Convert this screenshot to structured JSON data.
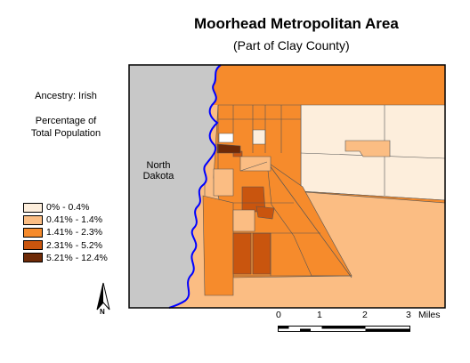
{
  "title": "Moorhead Metropolitan Area",
  "subtitle": "(Part of Clay County)",
  "topic": "Ancestry: Irish",
  "measure_line1": "Percentage of",
  "measure_line2": "Total Population",
  "state_label_line1": "North",
  "state_label_line2": "Dakota",
  "legend": [
    {
      "label": "0% - 0.4%",
      "color": "#fdeedc"
    },
    {
      "label": "0.41% - 1.4%",
      "color": "#fbbd83"
    },
    {
      "label": "1.41% - 2.3%",
      "color": "#f68b2c"
    },
    {
      "label": "2.31% - 5.2%",
      "color": "#c9550e"
    },
    {
      "label": "5.21% - 12.4%",
      "color": "#6e2a07"
    }
  ],
  "scale": {
    "ticks": [
      "0",
      "1",
      "2",
      "3"
    ],
    "unit": "Miles"
  },
  "north_label": "N",
  "colors": {
    "river": "#0000ff",
    "north_dakota": "#c8c8c8",
    "border": "#000000"
  }
}
